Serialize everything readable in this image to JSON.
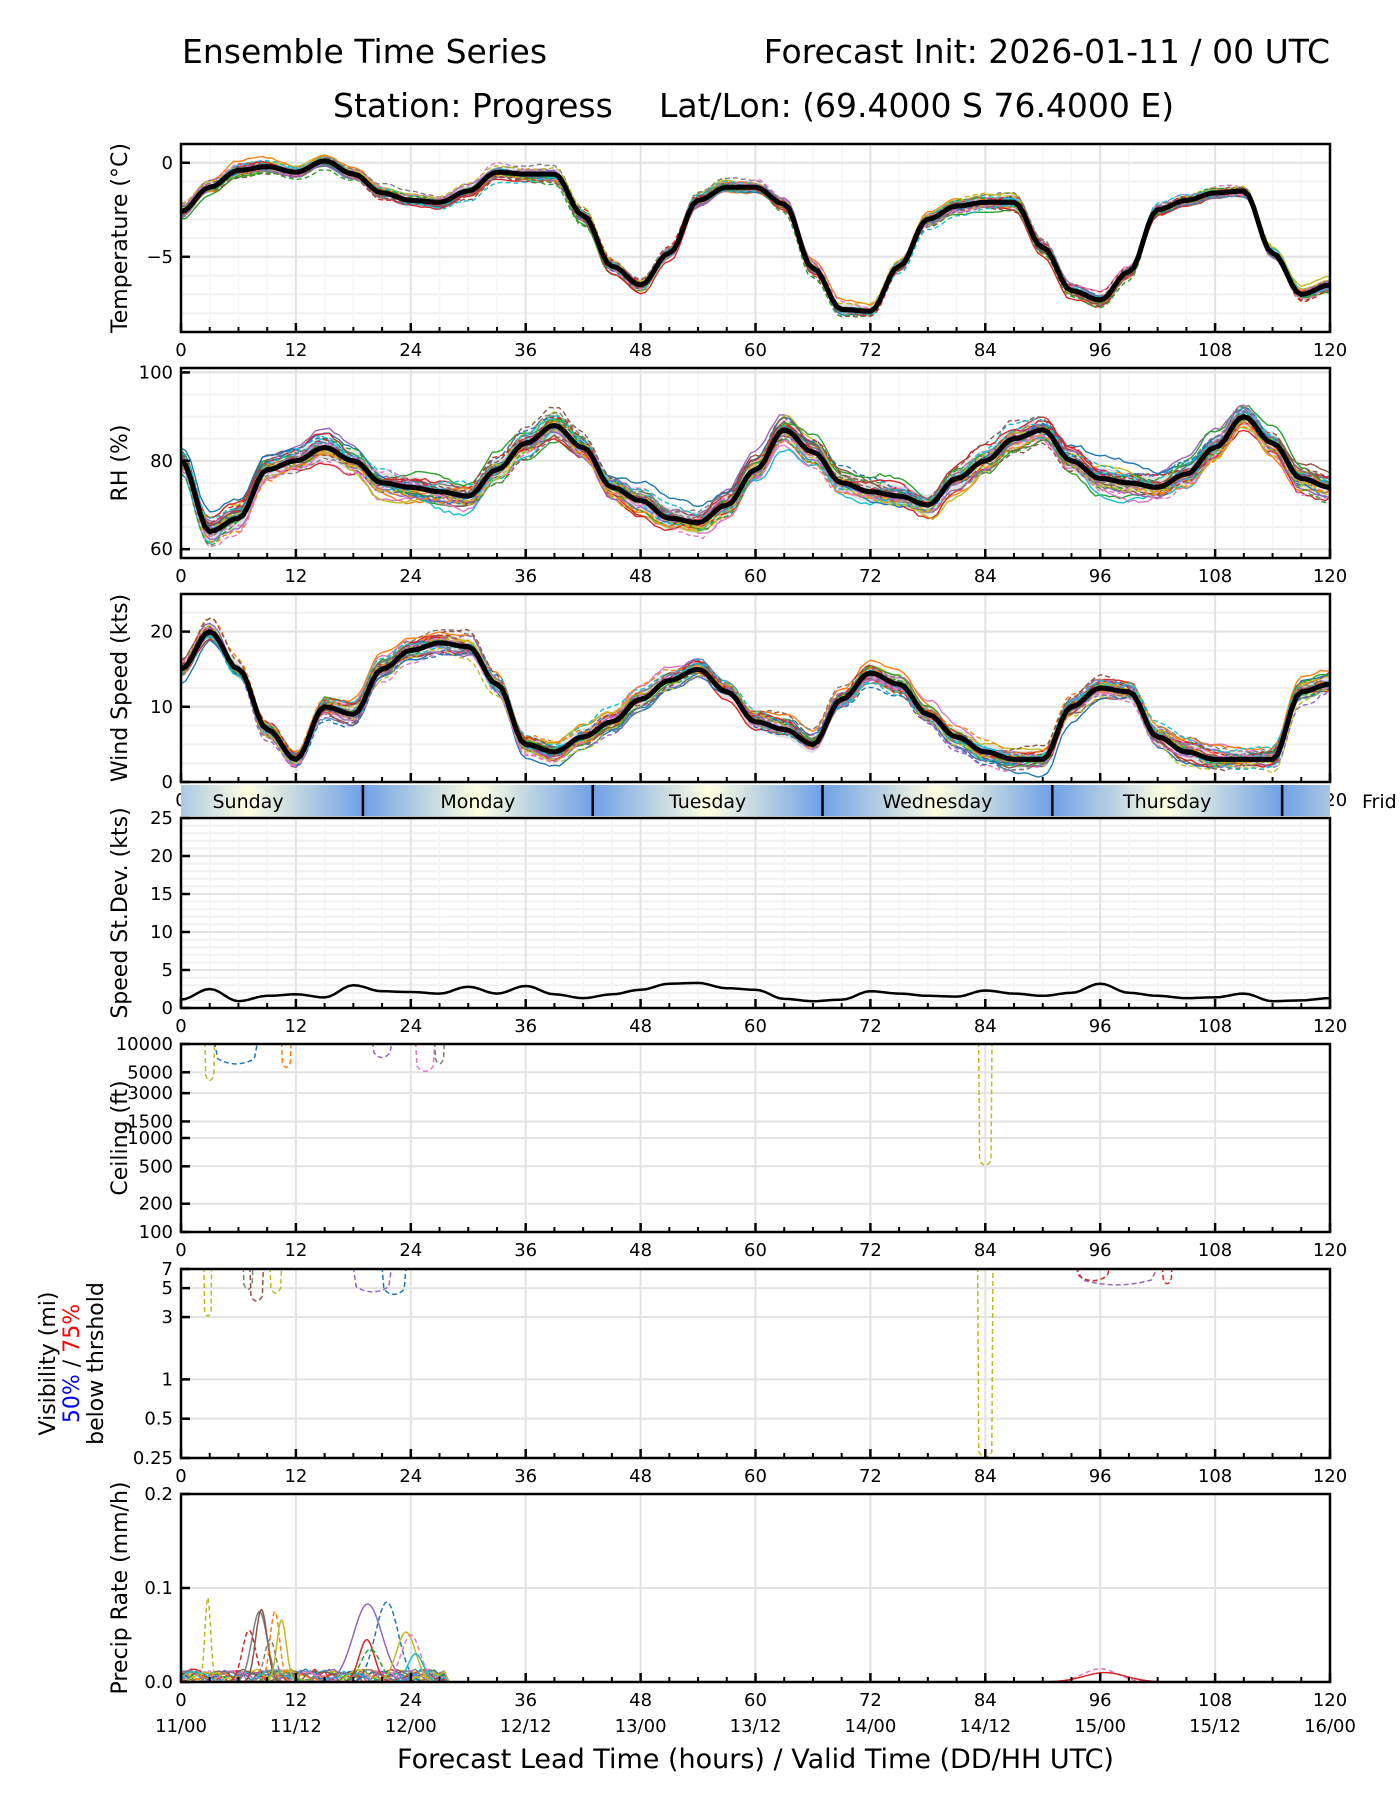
{
  "header": {
    "title": "Ensemble Time Series",
    "init": "Forecast Init: 2026-01-11 / 00 UTC",
    "station": "Station: Progress",
    "latlon": "Lat/Lon: (69.4000 S 76.4000 E)"
  },
  "chart_data": [
    {
      "id": "temperature",
      "type": "line",
      "ylabel": "Temperature (°C)",
      "ylim": [
        -9,
        1
      ],
      "yticks": [
        0,
        -5
      ],
      "yticklabels": [
        "0",
        "−5"
      ],
      "xlim": [
        0,
        120
      ],
      "xticks": [
        0,
        12,
        24,
        36,
        48,
        60,
        72,
        84,
        96,
        108,
        120
      ],
      "grid": true,
      "series": [
        {
          "name": "ensemble mean",
          "x_step_hours": 3,
          "values": [
            -2.6,
            -1.3,
            -0.4,
            -0.2,
            -0.5,
            0.1,
            -0.6,
            -1.6,
            -2.0,
            -2.1,
            -1.5,
            -0.5,
            -0.6,
            -0.6,
            -2.8,
            -5.5,
            -6.5,
            -4.8,
            -2.0,
            -1.3,
            -1.3,
            -2.2,
            -5.6,
            -7.8,
            -7.9,
            -5.5,
            -3.0,
            -2.3,
            -2.1,
            -2.1,
            -4.5,
            -6.8,
            -7.3,
            -5.8,
            -2.5,
            -2.0,
            -1.6,
            -1.5,
            -4.8,
            -7.0,
            -6.5
          ]
        }
      ]
    },
    {
      "id": "rh",
      "type": "line",
      "ylabel": "RH (%)",
      "ylim": [
        58,
        101
      ],
      "yticks": [
        60,
        80,
        100
      ],
      "yticklabels": [
        "60",
        "80",
        "100"
      ],
      "xlim": [
        0,
        120
      ],
      "xticks": [
        0,
        12,
        24,
        36,
        48,
        60,
        72,
        84,
        96,
        108,
        120
      ],
      "grid": true,
      "series": [
        {
          "name": "ensemble mean",
          "x_step_hours": 3,
          "values": [
            80,
            64,
            67,
            78,
            80,
            83,
            80,
            75,
            74,
            73,
            72,
            78,
            84,
            88,
            83,
            74,
            71,
            67,
            66,
            70,
            78,
            87,
            82,
            75,
            73,
            72,
            70,
            76,
            80,
            85,
            87,
            80,
            76,
            75,
            74,
            77,
            83,
            90,
            84,
            76,
            74
          ]
        }
      ]
    },
    {
      "id": "wind_speed",
      "type": "line",
      "ylabel": "Wind Speed (kts)",
      "ylim": [
        0,
        25
      ],
      "yticks": [
        0,
        10,
        20
      ],
      "yticklabels": [
        "0",
        "10",
        "20"
      ],
      "xlim": [
        0,
        120
      ],
      "xticks": [
        0,
        12,
        24,
        36,
        48,
        60,
        72,
        84,
        96,
        108,
        120
      ],
      "grid": true,
      "series": [
        {
          "name": "ensemble mean",
          "x_step_hours": 3,
          "values": [
            15,
            20,
            15,
            7,
            3,
            10,
            9,
            15,
            17.5,
            18.5,
            18,
            13,
            5,
            4,
            6,
            8,
            11,
            13.5,
            15,
            12,
            8,
            7,
            5,
            11,
            14.5,
            13,
            9,
            6,
            4,
            3,
            3,
            10,
            12.5,
            12,
            6,
            4,
            3,
            3,
            3,
            12,
            13
          ]
        }
      ]
    },
    {
      "id": "speed_stdev",
      "type": "line",
      "ylabel": "Speed St.Dev. (kts)",
      "ylim": [
        0,
        25
      ],
      "yticks": [
        0,
        5,
        10,
        15,
        20,
        25
      ],
      "yticklabels": [
        "0",
        "5",
        "10",
        "15",
        "20",
        "25"
      ],
      "xlim": [
        0,
        120
      ],
      "xticks": [
        0,
        12,
        24,
        36,
        48,
        60,
        72,
        84,
        96,
        108,
        120
      ],
      "grid": true,
      "series": [
        {
          "name": "speed standard deviation",
          "x_step_hours": 3,
          "values": [
            1.1,
            2.5,
            0.9,
            1.6,
            1.8,
            1.4,
            3.0,
            2.2,
            2.1,
            1.9,
            2.8,
            1.9,
            2.9,
            1.8,
            1.3,
            1.8,
            2.4,
            3.2,
            3.3,
            2.6,
            2.4,
            1.2,
            0.9,
            1.1,
            2.2,
            1.9,
            1.6,
            1.5,
            2.3,
            1.9,
            1.6,
            2.0,
            3.2,
            2.0,
            1.6,
            1.3,
            1.4,
            1.9,
            0.9,
            1.0,
            1.3
          ]
        }
      ]
    },
    {
      "id": "ceiling",
      "type": "line",
      "yscale": "log",
      "ylabel": "Ceiling (ft)",
      "ylim": [
        100,
        10000
      ],
      "yticks": [
        100,
        200,
        500,
        1000,
        1500,
        3000,
        5000,
        10000
      ],
      "yticklabels": [
        "100",
        "200",
        "500",
        "1000",
        "1500",
        "3000",
        "5000",
        "10000"
      ],
      "xlim": [
        0,
        120
      ],
      "xticks": [
        0,
        12,
        24,
        36,
        48,
        60,
        72,
        84,
        96,
        108,
        120
      ],
      "grid": true,
      "events": [
        {
          "member": "olive",
          "start": 2.5,
          "end": 3.5,
          "min": 4000
        },
        {
          "member": "blue",
          "start": 3.5,
          "end": 8,
          "min": 6000
        },
        {
          "member": "cyan",
          "start": 5.5,
          "end": 8.5,
          "min": 5500
        },
        {
          "member": "orange",
          "start": 10.5,
          "end": 11.5,
          "min": 5500
        },
        {
          "member": "purple",
          "start": 20,
          "end": 22,
          "min": 7000
        },
        {
          "member": "pink",
          "start": 24.5,
          "end": 26.5,
          "min": 5000
        },
        {
          "member": "gray",
          "start": 26.5,
          "end": 27.5,
          "min": 6000
        },
        {
          "member": "olive",
          "start": 83.3,
          "end": 84.7,
          "min": 500
        }
      ]
    },
    {
      "id": "visibility",
      "type": "line",
      "yscale": "log",
      "ylabel_parts": [
        {
          "text": "Visibility (mi)",
          "color": "#000000"
        },
        {
          "text": "50%",
          "color": "#0000ff"
        },
        {
          "text": " / ",
          "color": "#000000"
        },
        {
          "text": "75%",
          "color": "#ff0000"
        },
        {
          "text": "below thrshold",
          "color": "#000000"
        }
      ],
      "ylim": [
        0.25,
        7
      ],
      "yticks": [
        0.25,
        0.5,
        1,
        3,
        5,
        7
      ],
      "yticklabels": [
        "0.25",
        "0.5",
        "1",
        "3",
        "5",
        "7"
      ],
      "xlim": [
        0,
        120
      ],
      "xticks": [
        0,
        12,
        24,
        36,
        48,
        60,
        72,
        84,
        96,
        108,
        120
      ],
      "grid": true,
      "events": [
        {
          "member": "olive",
          "start": 2.4,
          "end": 3.2,
          "min": 3
        },
        {
          "member": "gray",
          "start": 6.5,
          "end": 7.5,
          "min": 4.8
        },
        {
          "member": "brown",
          "start": 7.2,
          "end": 8.6,
          "min": 3.9
        },
        {
          "member": "olive",
          "start": 9.3,
          "end": 10.5,
          "min": 4.5
        },
        {
          "member": "purple",
          "start": 18,
          "end": 22,
          "min": 4.6
        },
        {
          "member": "blue",
          "start": 21,
          "end": 23.5,
          "min": 4.4
        },
        {
          "member": "cyan",
          "start": 31,
          "end": 32.5,
          "min": 4.6
        },
        {
          "member": "olive",
          "start": 83.2,
          "end": 84.8,
          "min": 0.25
        },
        {
          "member": "purple",
          "start": 93.5,
          "end": 102,
          "min": 5.2
        },
        {
          "member": "red",
          "start": 93.5,
          "end": 97,
          "min": 5.6
        },
        {
          "member": "red",
          "start": 102.5,
          "end": 103.5,
          "min": 5.3
        }
      ]
    },
    {
      "id": "precip_rate",
      "type": "line",
      "ylabel": "Precip Rate (mm/h)",
      "ylim": [
        0,
        0.2
      ],
      "yticks": [
        0,
        0.1,
        0.2
      ],
      "yticklabels": [
        "0.0",
        "0.1",
        "0.2"
      ],
      "xlim": [
        0,
        120
      ],
      "xticks": [
        0,
        12,
        24,
        36,
        48,
        60,
        72,
        84,
        96,
        108,
        120
      ],
      "xticklabels_top": [
        "0",
        "12",
        "24",
        "36",
        "48",
        "60",
        "72",
        "84",
        "96",
        "108",
        "120"
      ],
      "xticklabels_bottom": [
        "11/00",
        "11/12",
        "12/00",
        "12/12",
        "13/00",
        "13/12",
        "14/00",
        "14/12",
        "15/00",
        "15/12",
        "16/00"
      ],
      "xlabel": "Forecast Lead Time (hours) / Valid Time (DD/HH UTC)",
      "grid": true,
      "events": [
        {
          "member": "olive",
          "center": 2.8,
          "width": 0.3,
          "peak": 0.09
        },
        {
          "member": "gray",
          "center": 8.2,
          "width": 0.8,
          "peak": 0.075
        },
        {
          "member": "red",
          "center": 7.1,
          "width": 0.7,
          "peak": 0.055
        },
        {
          "member": "brown",
          "center": 8.4,
          "width": 0.6,
          "peak": 0.077
        },
        {
          "member": "orange",
          "center": 9.8,
          "width": 0.5,
          "peak": 0.075
        },
        {
          "member": "olive",
          "center": 10.5,
          "width": 0.5,
          "peak": 0.066
        },
        {
          "member": "gray",
          "center": 9.3,
          "width": 0.6,
          "peak": 0.045
        },
        {
          "member": "purple",
          "center": 19.5,
          "width": 1.5,
          "peak": 0.083
        },
        {
          "member": "blue",
          "center": 21.5,
          "width": 1.2,
          "peak": 0.085
        },
        {
          "member": "red",
          "center": 19.4,
          "width": 0.8,
          "peak": 0.045
        },
        {
          "member": "green",
          "center": 19.8,
          "width": 1.0,
          "peak": 0.035
        },
        {
          "member": "olive",
          "center": 23.5,
          "width": 1.0,
          "peak": 0.053
        },
        {
          "member": "pink",
          "center": 24.0,
          "width": 1.0,
          "peak": 0.05
        },
        {
          "member": "teal",
          "center": 24.5,
          "width": 0.8,
          "peak": 0.03
        },
        {
          "member": "pink",
          "center": 96.0,
          "width": 1.8,
          "peak": 0.014
        },
        {
          "member": "red",
          "center": 96.5,
          "width": 2.2,
          "peak": 0.01
        }
      ]
    }
  ],
  "day_band": {
    "labels": [
      "Sunday",
      "Monday",
      "Tuesday",
      "Wednesday",
      "Thursday",
      "Frid"
    ],
    "boundaries_hours": [
      19,
      43,
      67,
      91,
      115
    ],
    "label_centers_hours": [
      7,
      31,
      55,
      79,
      103,
      127
    ],
    "colors": {
      "noon": "#ffffe0",
      "midnight": "#6fa0e6"
    }
  },
  "colors": {
    "mean": "#000000",
    "spread": "#d3d3d3",
    "grid": "#e3e3e3",
    "members": {
      "blue": "#1f77b4",
      "orange": "#ff7f0e",
      "green": "#2ca02c",
      "red": "#d62728",
      "purple": "#9467bd",
      "brown": "#8c564b",
      "pink": "#e377c2",
      "gray": "#7f7f7f",
      "olive": "#bcbd22",
      "teal": "#17becf"
    }
  }
}
